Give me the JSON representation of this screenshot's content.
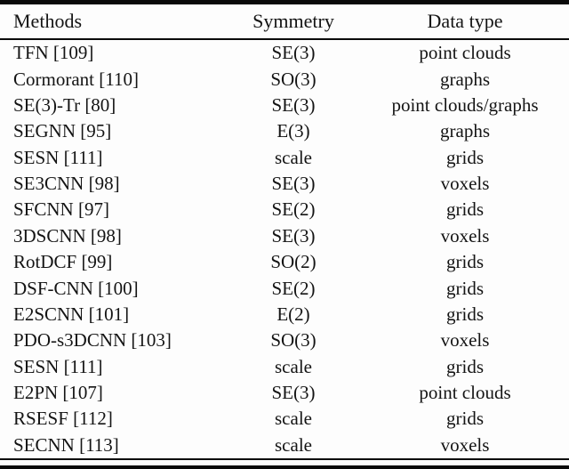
{
  "table": {
    "columns": [
      "Methods",
      "Symmetry",
      "Data type"
    ],
    "rows": [
      {
        "method": "TFN [109]",
        "symmetry": "SE(3)",
        "data_type": "point clouds"
      },
      {
        "method": "Cormorant [110]",
        "symmetry": "SO(3)",
        "data_type": "graphs"
      },
      {
        "method": "SE(3)-Tr [80]",
        "symmetry": "SE(3)",
        "data_type": "point clouds/graphs"
      },
      {
        "method": "SEGNN [95]",
        "symmetry": "E(3)",
        "data_type": "graphs"
      },
      {
        "method": "SESN [111]",
        "symmetry": "scale",
        "data_type": "grids"
      },
      {
        "method": "SE3CNN [98]",
        "symmetry": "SE(3)",
        "data_type": "voxels"
      },
      {
        "method": "SFCNN [97]",
        "symmetry": "SE(2)",
        "data_type": "grids"
      },
      {
        "method": "3DSCNN [98]",
        "symmetry": "SE(3)",
        "data_type": "voxels"
      },
      {
        "method": "RotDCF [99]",
        "symmetry": "SO(2)",
        "data_type": "grids"
      },
      {
        "method": "DSF-CNN [100]",
        "symmetry": "SE(2)",
        "data_type": "grids"
      },
      {
        "method": "E2SCNN [101]",
        "symmetry": "E(2)",
        "data_type": "grids"
      },
      {
        "method": "PDO-s3DCNN [103]",
        "symmetry": "SO(3)",
        "data_type": "voxels"
      },
      {
        "method": "SESN [111]",
        "symmetry": "scale",
        "data_type": "grids"
      },
      {
        "method": "E2PN [107]",
        "symmetry": "SE(3)",
        "data_type": "point clouds"
      },
      {
        "method": "RSESF [112]",
        "symmetry": "scale",
        "data_type": "grids"
      },
      {
        "method": "SECNN [113]",
        "symmetry": "scale",
        "data_type": "voxels"
      }
    ]
  },
  "colors": {
    "rule": "#0a0a0a",
    "text": "#141414",
    "background": "#fdfdfd"
  }
}
